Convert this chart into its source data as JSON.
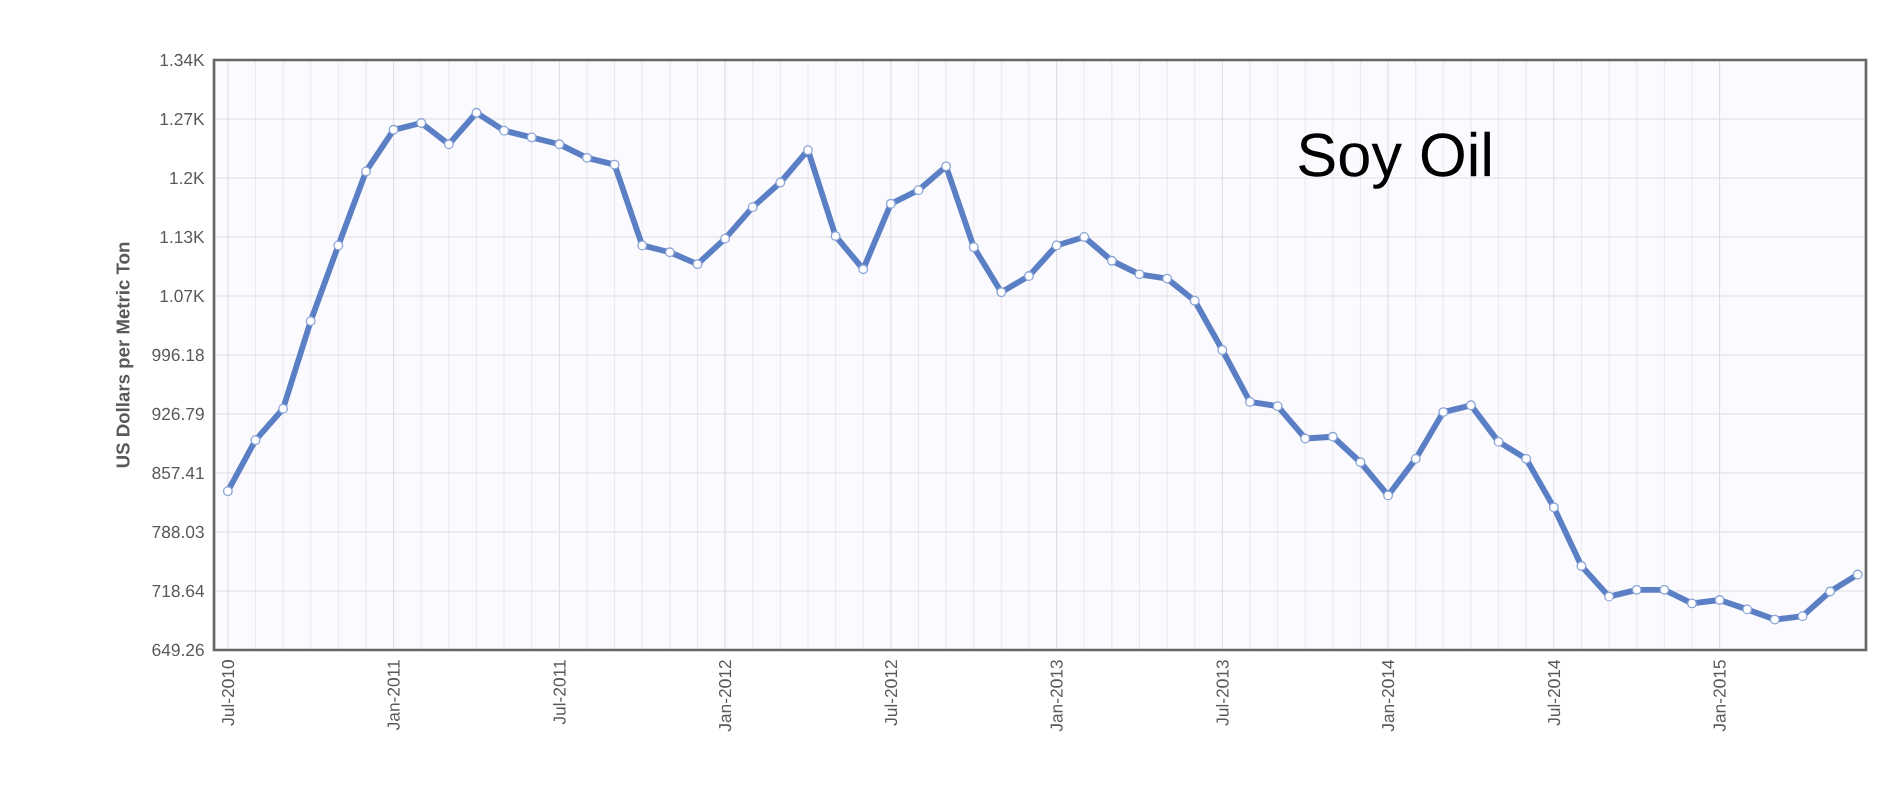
{
  "chart_data": {
    "type": "line",
    "ylabel": "US Dollars per Metric Ton",
    "annotations": [
      "Soy Oil"
    ],
    "x": [
      "2010-07",
      "2010-08",
      "2010-09",
      "2010-10",
      "2010-11",
      "2010-12",
      "2011-01",
      "2011-02",
      "2011-03",
      "2011-04",
      "2011-05",
      "2011-06",
      "2011-07",
      "2011-08",
      "2011-09",
      "2011-10",
      "2011-11",
      "2011-12",
      "2012-01",
      "2012-02",
      "2012-03",
      "2012-04",
      "2012-05",
      "2012-06",
      "2012-07",
      "2012-08",
      "2012-09",
      "2012-10",
      "2012-11",
      "2012-12",
      "2013-01",
      "2013-02",
      "2013-03",
      "2013-04",
      "2013-05",
      "2013-06",
      "2013-07",
      "2013-08",
      "2013-09",
      "2013-10",
      "2013-11",
      "2013-12",
      "2014-01",
      "2014-02",
      "2014-03",
      "2014-04",
      "2014-05",
      "2014-06",
      "2014-07",
      "2014-08",
      "2014-09",
      "2014-10",
      "2014-11",
      "2014-12",
      "2015-01",
      "2015-02",
      "2015-03",
      "2015-04",
      "2015-05",
      "2015-06"
    ],
    "series": [
      {
        "color": "#5b7fc4",
        "values": [
          836,
          896,
          933,
          1036,
          1125,
          1212,
          1261,
          1269,
          1244,
          1281,
          1260,
          1252,
          1244,
          1228,
          1220,
          1125,
          1117,
          1103,
          1133,
          1170,
          1199,
          1237,
          1136,
          1097,
          1174,
          1190,
          1218,
          1123,
          1070,
          1089,
          1125,
          1135,
          1107,
          1091,
          1086,
          1060,
          1002,
          941,
          936,
          898,
          900,
          870,
          831,
          874,
          929,
          937,
          894,
          874,
          817,
          748,
          712,
          720,
          720,
          704,
          708,
          697,
          685,
          689,
          718,
          738
        ]
      }
    ],
    "xlim": [
      "2010-06-16",
      "2015-06-10"
    ],
    "xticks": [
      {
        "value": "2010-07",
        "label": "Jul-2010"
      },
      {
        "value": "2011-01",
        "label": "Jan-2011"
      },
      {
        "value": "2011-07",
        "label": "Jul-2011"
      },
      {
        "value": "2012-01",
        "label": "Jan-2012"
      },
      {
        "value": "2012-07",
        "label": "Jul-2012"
      },
      {
        "value": "2013-01",
        "label": "Jan-2013"
      },
      {
        "value": "2013-07",
        "label": "Jul-2013"
      },
      {
        "value": "2014-01",
        "label": "Jan-2014"
      },
      {
        "value": "2014-07",
        "label": "Jul-2014"
      },
      {
        "value": "2015-01",
        "label": "Jan-2015"
      }
    ],
    "ylim": [
      649.26,
      1343.09
    ],
    "yticks": [
      649.26,
      718.64,
      788.03,
      857.41,
      926.79,
      996.18,
      {
        "value": 1065.56,
        "label": "1.07K"
      },
      {
        "value": 1134.94,
        "label": "1.13K"
      },
      {
        "value": 1204.33,
        "label": "1.2K"
      },
      {
        "value": 1273.71,
        "label": "1.27K"
      },
      {
        "value": 1343.09,
        "label": "1.34K"
      }
    ],
    "grid": true,
    "marker": "circle",
    "line_style": "solid"
  }
}
